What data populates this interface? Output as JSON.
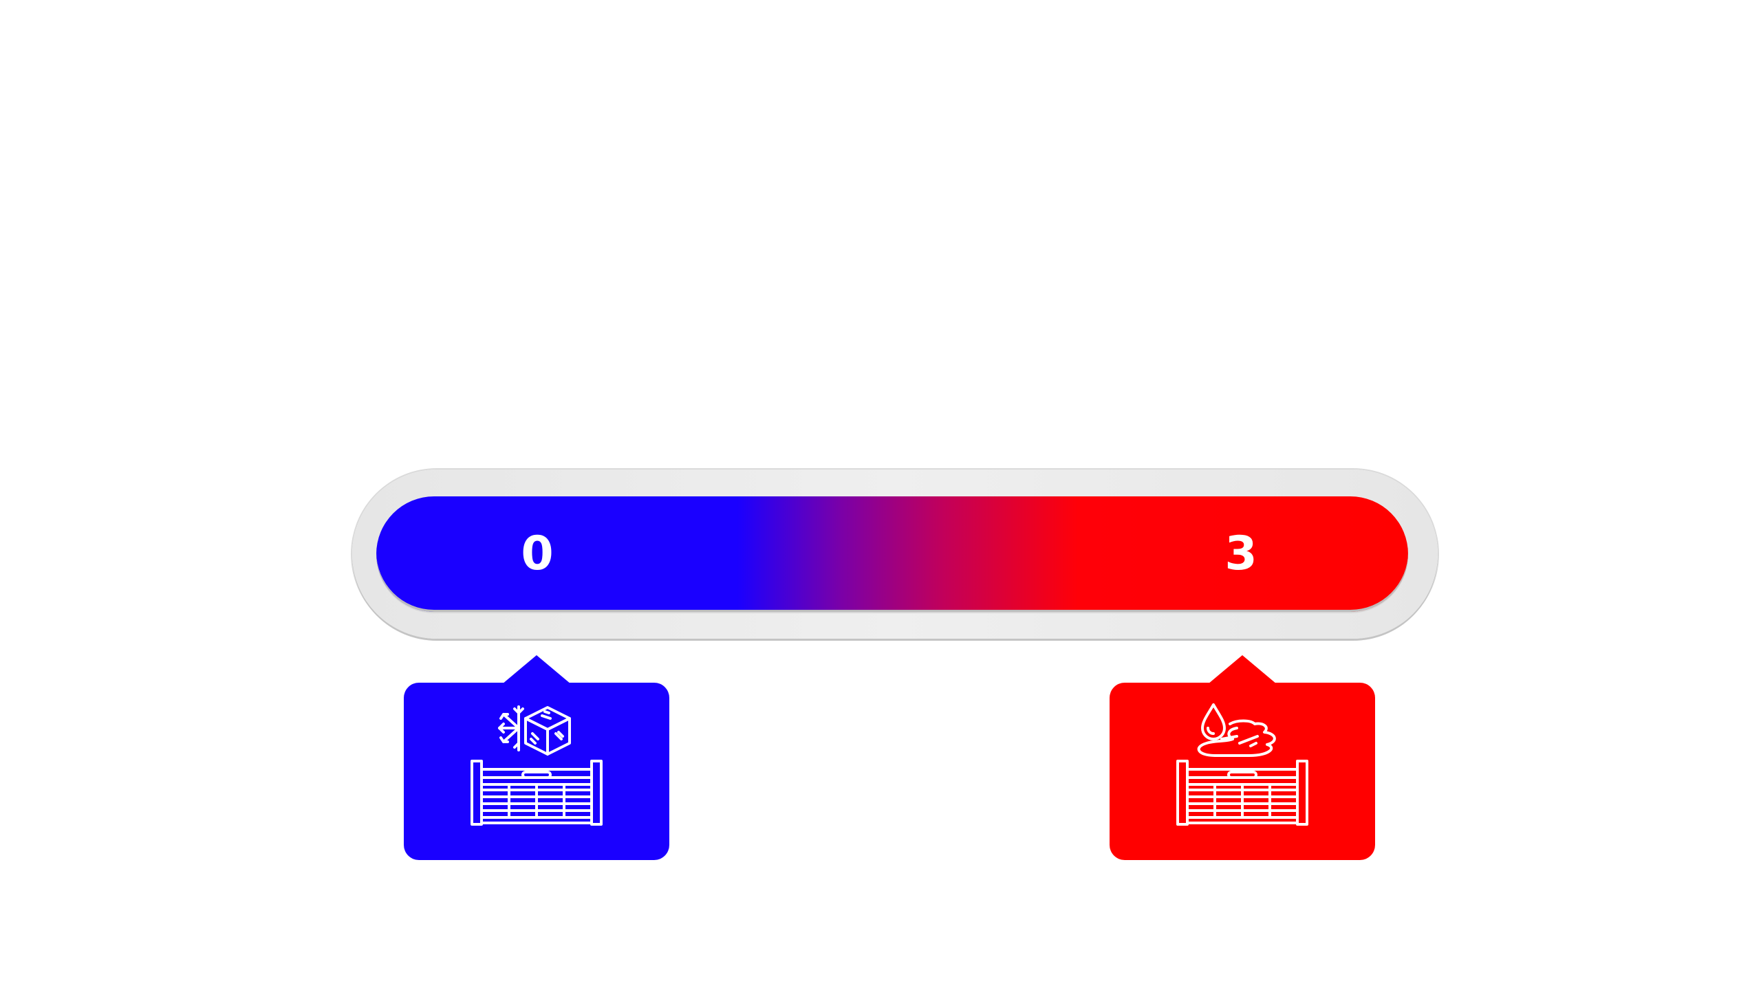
{
  "gauge": {
    "left_value": "0",
    "right_value": "3",
    "gradient_colors": [
      "#1a00ff",
      "#ff0000"
    ],
    "track_color": "#e9e9e9"
  },
  "callouts": [
    {
      "side": "left",
      "state": "frozen",
      "color": "#1a00ff",
      "icon": "frozen-heater-icon"
    },
    {
      "side": "right",
      "state": "melted",
      "color": "#ff0000",
      "icon": "melting-heater-icon"
    }
  ]
}
